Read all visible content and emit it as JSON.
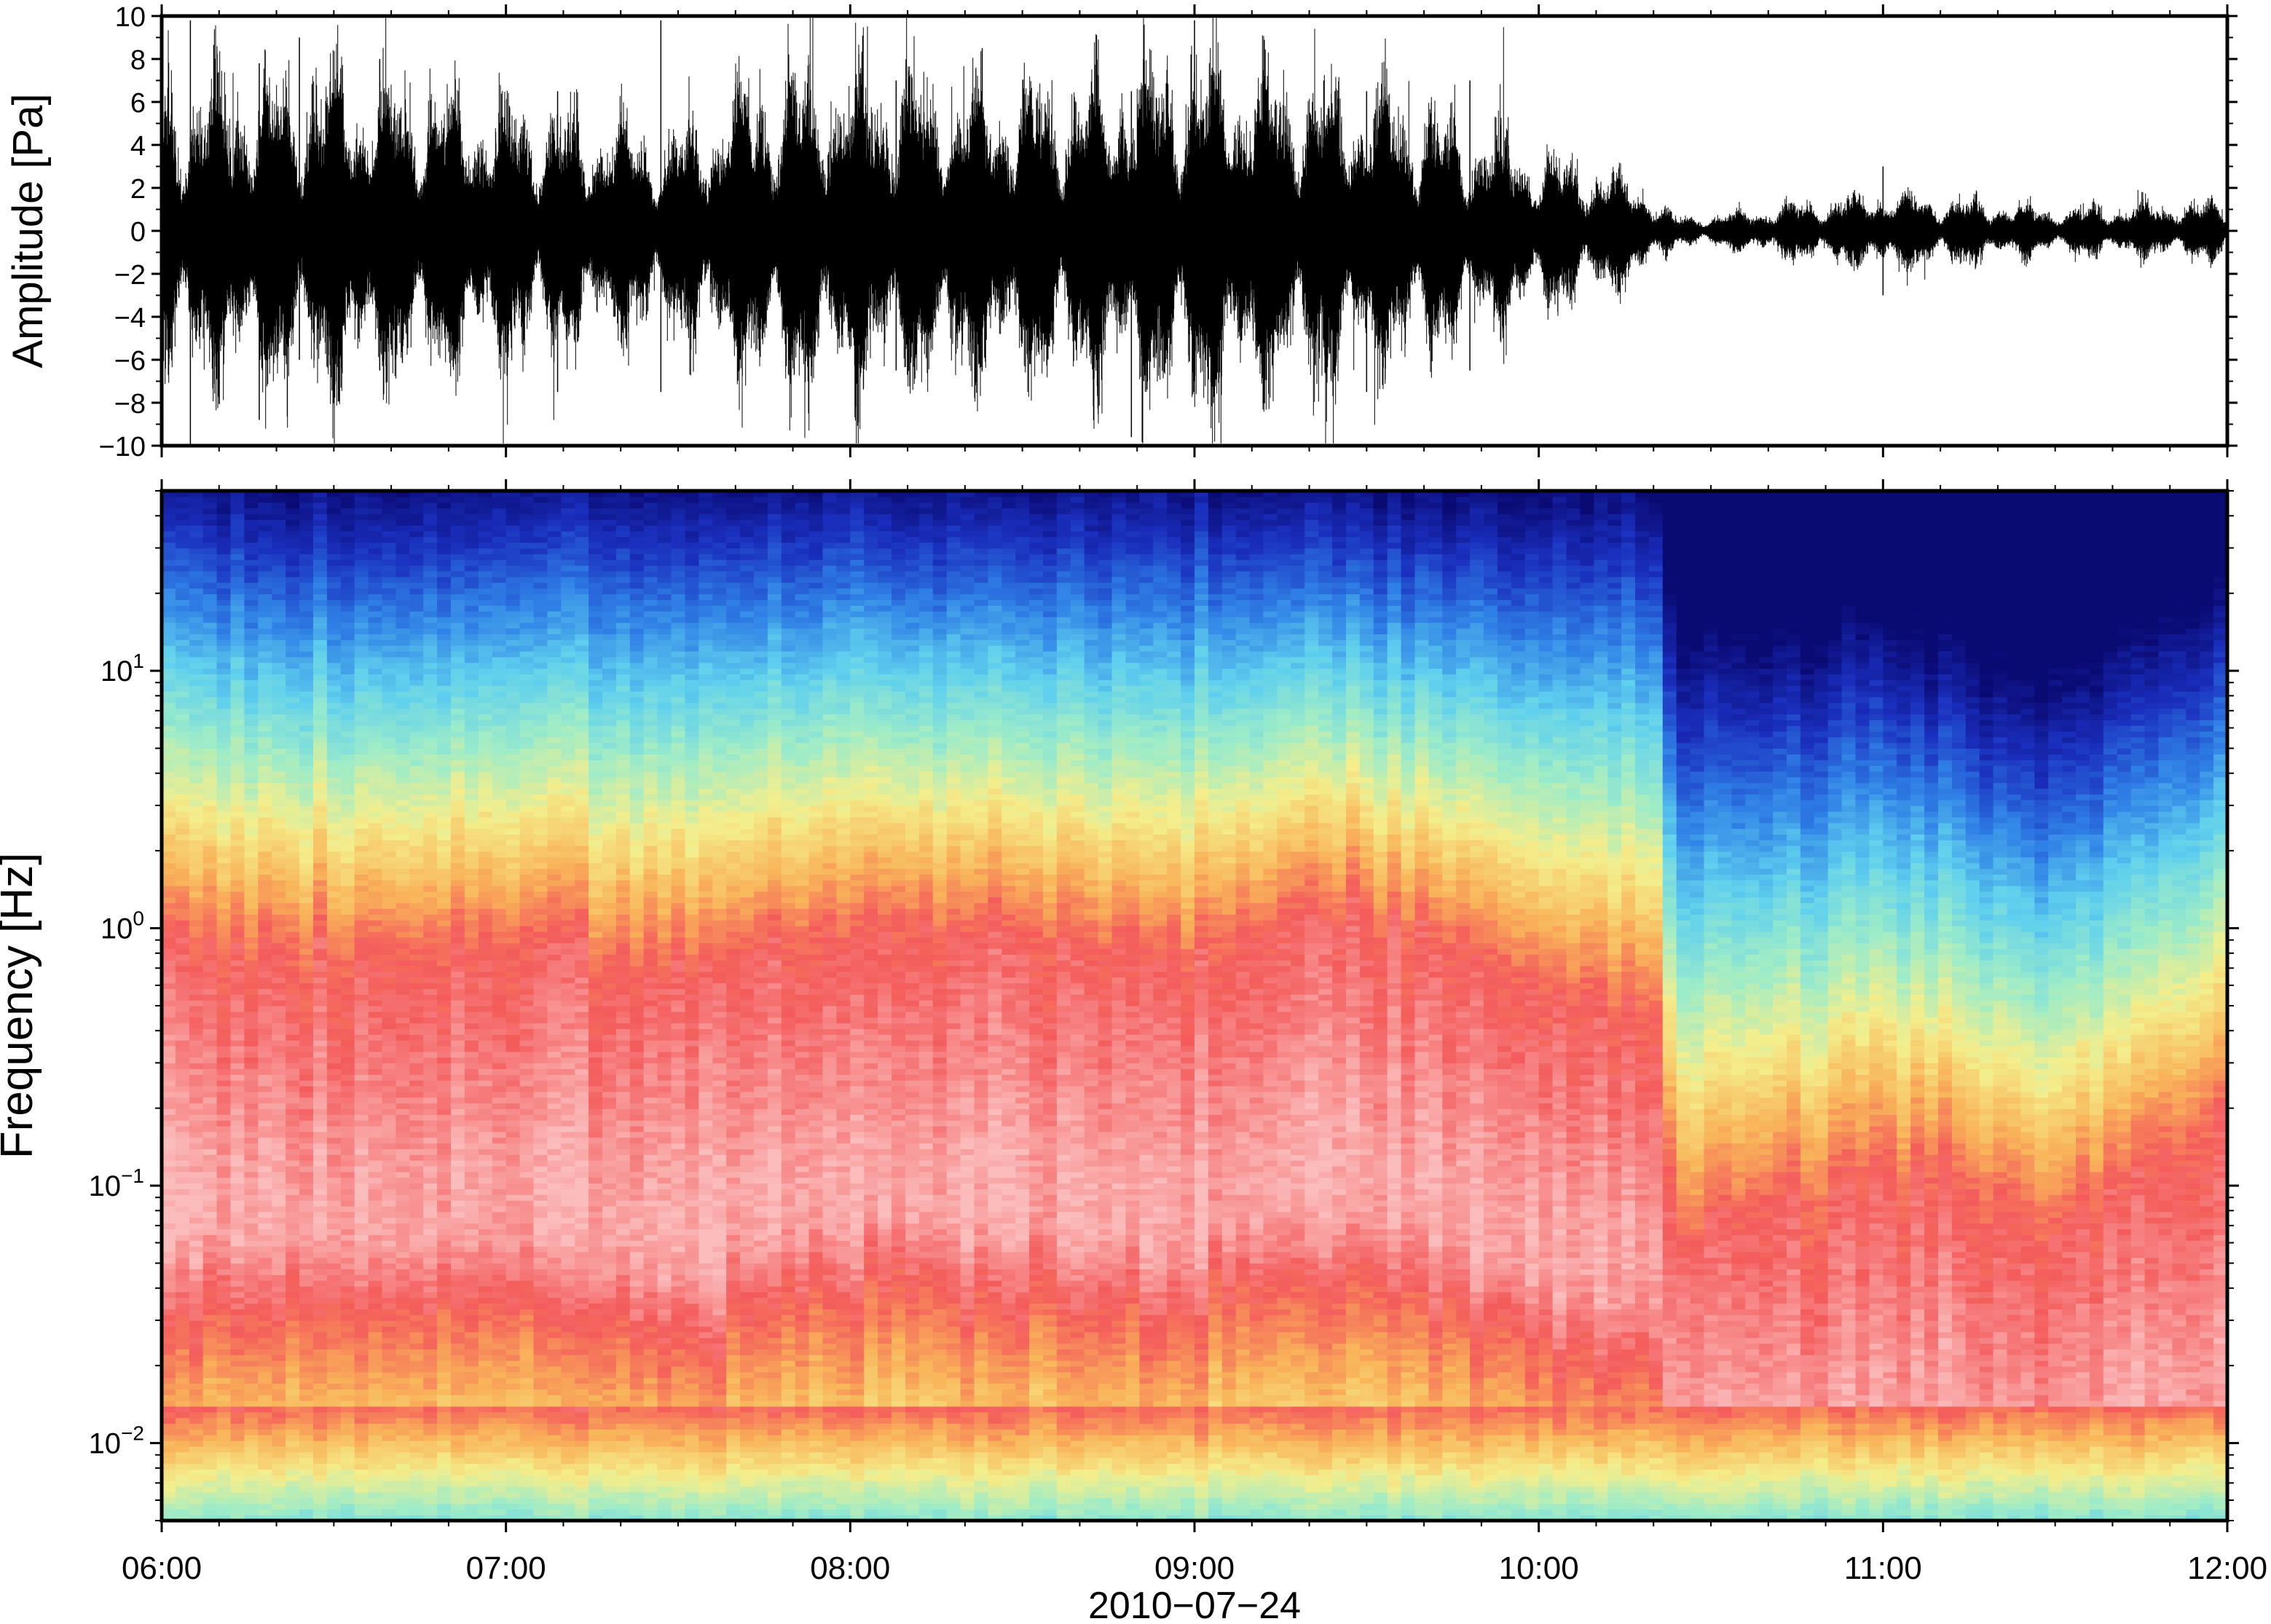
{
  "chart_data": [
    {
      "type": "line",
      "panel": "waveform",
      "ylabel": "Amplitude [Pa]",
      "ylim": [
        -10,
        10
      ],
      "yticks": [
        10,
        8,
        6,
        4,
        2,
        0,
        -2,
        -4,
        -6,
        -8,
        -10
      ],
      "ytick_labels": [
        "10",
        "8",
        "6",
        "4",
        "2",
        "0",
        "−2",
        "−4",
        "−6",
        "−8",
        "−10"
      ],
      "x_range": [
        "06:00",
        "12:00"
      ],
      "envelope": {
        "time_h": [
          6.0,
          6.5,
          7.0,
          7.5,
          7.75,
          8.0,
          8.5,
          9.0,
          9.5,
          10.0,
          10.3,
          10.4,
          10.5,
          11.0,
          11.5,
          12.0
        ],
        "amplitude_pa": [
          4.5,
          5.0,
          4.0,
          3.0,
          5.0,
          5.0,
          4.5,
          5.5,
          4.5,
          2.5,
          1.5,
          0.4,
          0.5,
          1.2,
          0.7,
          0.9
        ]
      },
      "spikes": [
        {
          "time": "06:05",
          "max": 9.8,
          "min": -10.0
        },
        {
          "time": "06:17",
          "max": 7.8,
          "min": -8.8
        },
        {
          "time": "06:24",
          "max": 9.0,
          "min": -6.0
        },
        {
          "time": "06:38",
          "max": 8.0,
          "min": -6.5
        },
        {
          "time": "07:09",
          "max": 6.5,
          "min": -7.5
        },
        {
          "time": "07:27",
          "max": 9.8,
          "min": -7.5
        },
        {
          "time": "08:08",
          "max": 7.0,
          "min": -6.5
        },
        {
          "time": "08:23",
          "max": 8.5,
          "min": -6.5
        },
        {
          "time": "08:49",
          "max": 6.5,
          "min": -9.6
        },
        {
          "time": "09:00",
          "max": 9.8,
          "min": -7.0
        },
        {
          "time": "09:30",
          "max": 6.5,
          "min": -7.5
        },
        {
          "time": "09:48",
          "max": 7.0,
          "min": -6.5
        },
        {
          "time": "11:00",
          "max": 3.0,
          "min": -3.0
        }
      ]
    },
    {
      "type": "heatmap",
      "panel": "spectrogram",
      "ylabel": "Frequency [Hz]",
      "yscale": "log",
      "ylim_hz": [
        0.005,
        50
      ],
      "ytick_labels": [
        {
          "base": "10",
          "exp": "1"
        },
        {
          "base": "10",
          "exp": "0"
        },
        {
          "base": "10",
          "exp": "−1"
        },
        {
          "base": "10",
          "exp": "−2"
        }
      ],
      "ytick_values": [
        10,
        1,
        0.1,
        0.01
      ],
      "xticks": [
        "06:00",
        "07:00",
        "08:00",
        "09:00",
        "10:00",
        "11:00",
        "12:00"
      ],
      "xlabel": "2010−07−24",
      "colormap": [
        "#0a0a73",
        "#1a2fbe",
        "#2f7fe6",
        "#5fd0ee",
        "#9eecc8",
        "#f4ee8c",
        "#f9b55a",
        "#f45b5b",
        "#fbbcbc"
      ],
      "power_profile": {
        "time_h": [
          6.0,
          6.5,
          7.0,
          7.5,
          8.0,
          8.5,
          9.0,
          9.5,
          10.0,
          10.35,
          10.4,
          10.5,
          11.0,
          11.5,
          12.0
        ],
        "red_edge_log10_hz": [
          -0.1,
          -0.1,
          -0.05,
          -0.2,
          0.0,
          -0.05,
          -0.1,
          0.05,
          -0.25,
          -0.35,
          -1.35,
          -1.2,
          -0.95,
          -1.15,
          -0.75
        ],
        "dark_top_log10_hz": [
          1.65,
          1.6,
          1.65,
          1.6,
          1.65,
          1.6,
          1.65,
          1.6,
          1.55,
          1.6,
          0.9,
          0.95,
          1.05,
          0.8,
          1.2
        ]
      }
    }
  ]
}
